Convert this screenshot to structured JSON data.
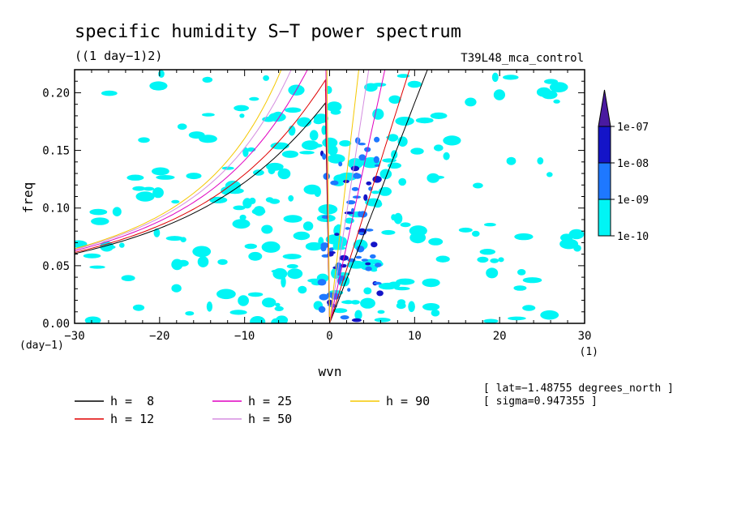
{
  "chart_data": {
    "type": "heatmap",
    "title": "specific humidity S−T power spectrum",
    "subtitle": "((1 day−1)2)",
    "dataset": "T39L48_mca_control",
    "xlabel": "wvn",
    "ylabel": "freq",
    "x_units": "(1)",
    "y_units": "(day−1)",
    "xlim": [
      -30,
      30
    ],
    "ylim": [
      0,
      0.22
    ],
    "x_ticks": [
      -30,
      -20,
      -10,
      0,
      10,
      20,
      30
    ],
    "x_tick_labels": [
      "−30",
      "−20",
      "−10",
      "0",
      "10",
      "20",
      "30"
    ],
    "y_ticks": [
      0,
      0.05,
      0.1,
      0.15,
      0.2
    ],
    "y_tick_labels": [
      "0.00",
      "0.05",
      "0.10",
      "0.15",
      "0.20"
    ],
    "colorbar": {
      "levels": [
        "1e-10",
        "1e-09",
        "1e-08",
        "1e-07"
      ],
      "colors": [
        "#00f5f5",
        "#1e78ff",
        "#1414c8",
        "#4a1aa0"
      ]
    },
    "series": [
      {
        "name": "h =  8",
        "color": "#000000",
        "h": 8
      },
      {
        "name": "h = 12",
        "color": "#e00000",
        "h": 12
      },
      {
        "name": "h = 25",
        "color": "#e000c0",
        "h": 25
      },
      {
        "name": "h = 50",
        "color": "#d58ee0",
        "h": 50
      },
      {
        "name": "h = 90",
        "color": "#f5c800",
        "h": 90
      }
    ],
    "annotations": [
      "[ lat=−1.48755 degrees_north ]",
      "[ sigma=0.947355 ]"
    ]
  }
}
